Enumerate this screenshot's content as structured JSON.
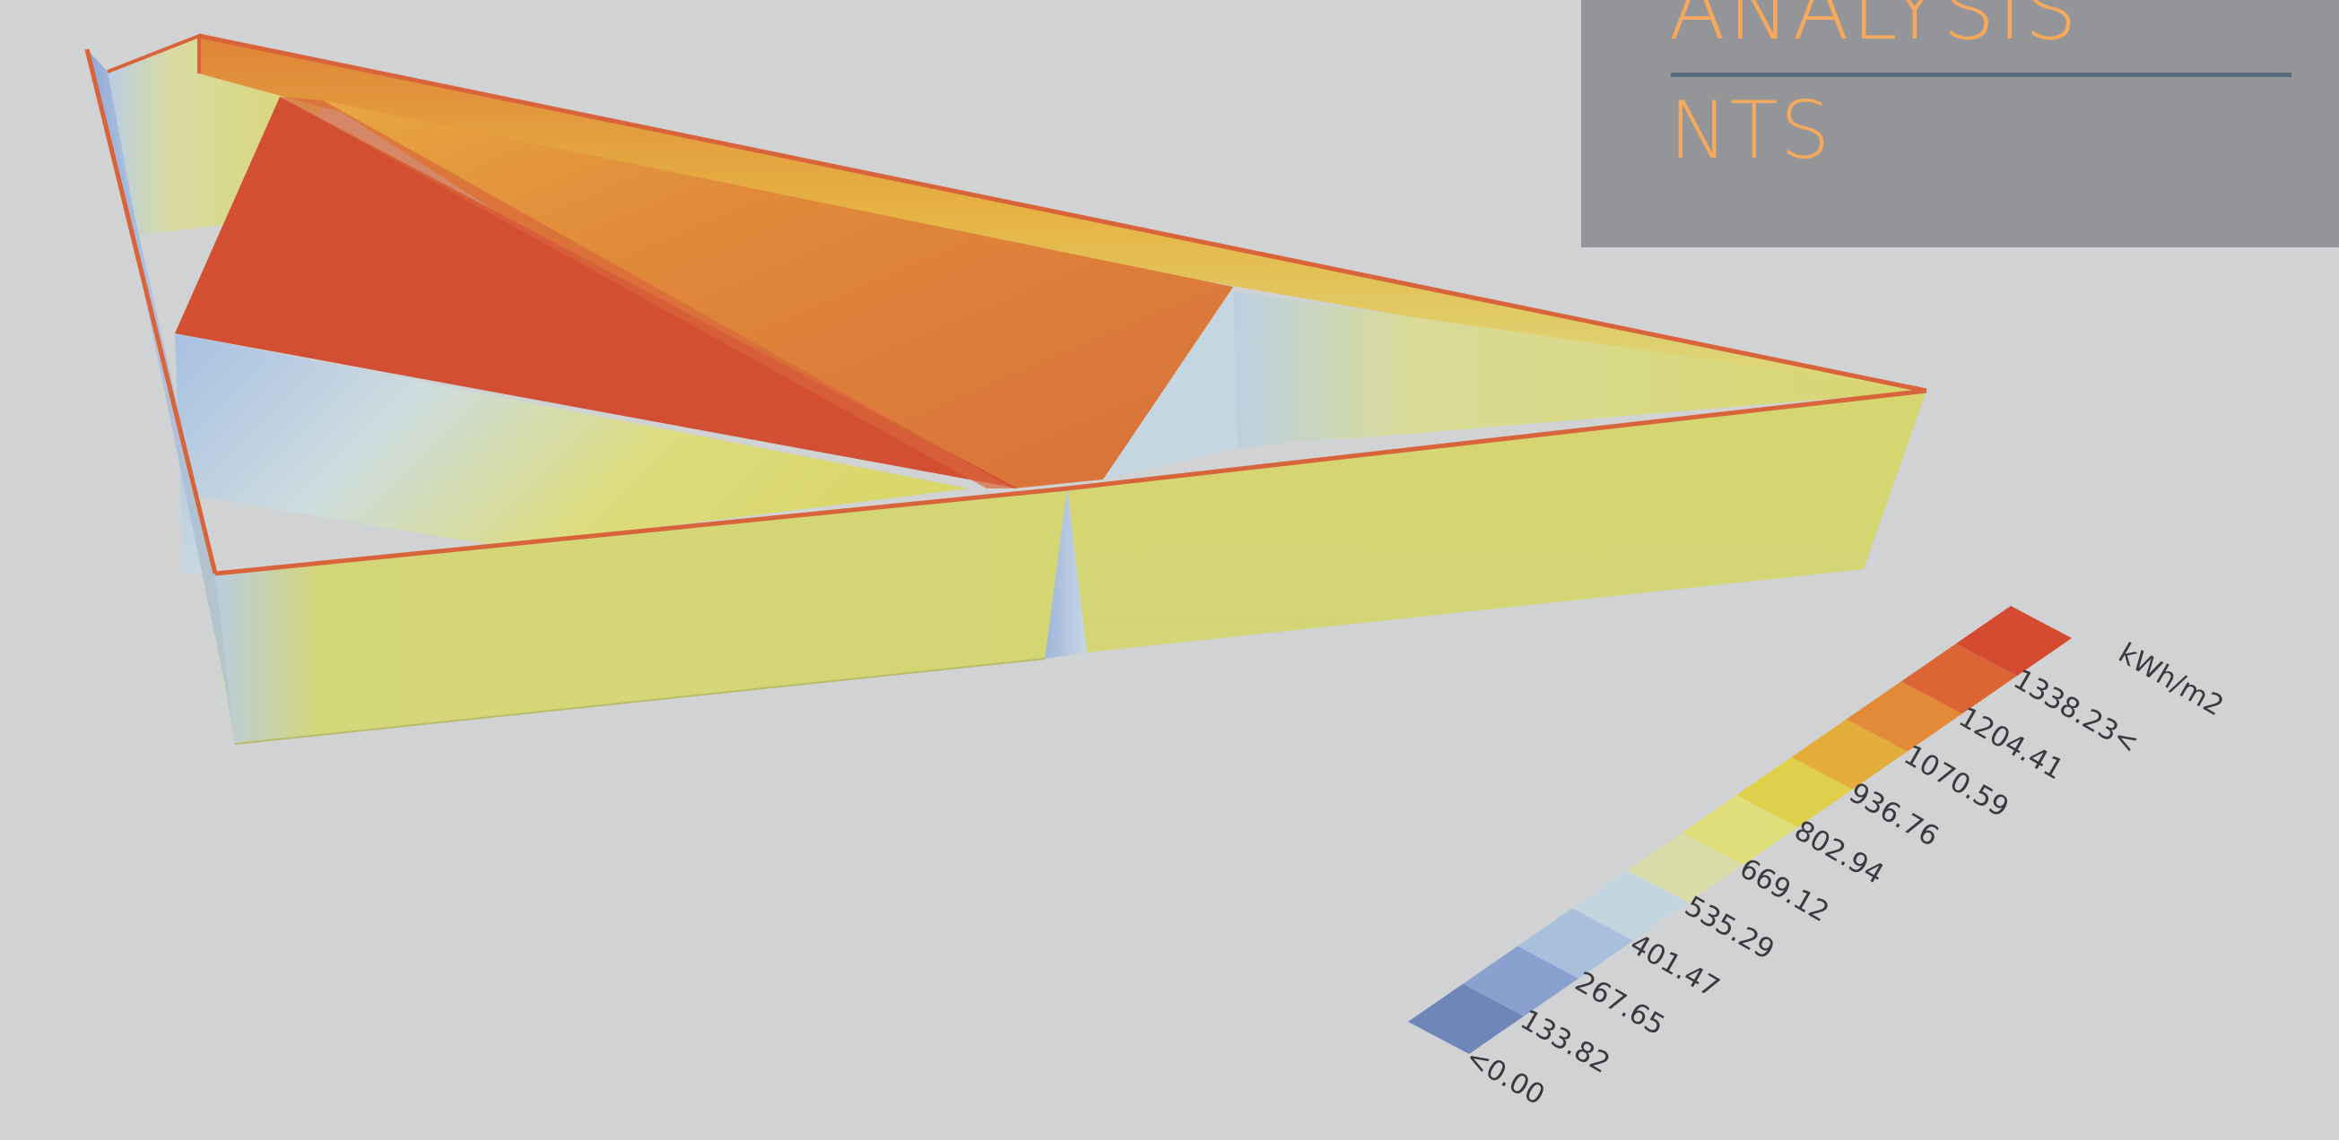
{
  "header": {
    "title_line1": "ANALYSIS",
    "title_line2": "NTS"
  },
  "colors": {
    "background": "#d0d2d4",
    "panel": "#949598",
    "title_text": "#f6a85c",
    "rule": "#5a6b7e",
    "edge": "#d9633a"
  },
  "legend": {
    "unit": "kWh/m2",
    "steps": [
      {
        "label": "<0.00",
        "color": "#6f86b8"
      },
      {
        "label": "133.82",
        "color": "#8aa0cf"
      },
      {
        "label": "267.65",
        "color": "#a9c0dc"
      },
      {
        "label": "401.47",
        "color": "#c3d6df"
      },
      {
        "label": "535.29",
        "color": "#d9dba8"
      },
      {
        "label": "669.12",
        "color": "#dfde7a"
      },
      {
        "label": "802.94",
        "color": "#e0cf4a"
      },
      {
        "label": "936.76",
        "color": "#e3ad3c"
      },
      {
        "label": "1070.59",
        "color": "#e28a38"
      },
      {
        "label": "1204.41",
        "color": "#dc6535"
      },
      {
        "label": "1338.23<",
        "color": "#d44b32"
      }
    ]
  }
}
